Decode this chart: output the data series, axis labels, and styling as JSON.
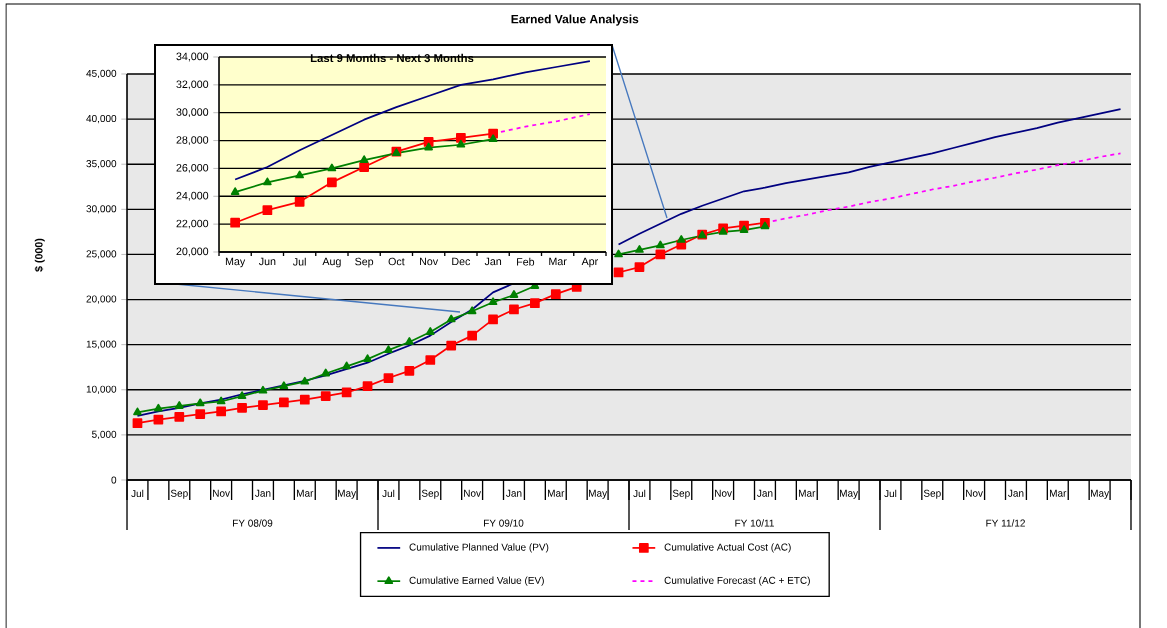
{
  "chart_data": [
    {
      "type": "line",
      "title": "Earned Value Analysis",
      "ylabel": "$ (000)",
      "categories": [
        "Jul",
        null,
        "Sep",
        null,
        "Nov",
        null,
        "Jan",
        null,
        "Mar",
        null,
        "May",
        null,
        "Jul",
        null,
        "Sep",
        null,
        "Nov",
        null,
        "Jan",
        null,
        "Mar",
        null,
        "May",
        null,
        "Jul",
        null,
        "Sep",
        null,
        "Nov",
        null,
        "Jan",
        null,
        "Mar",
        null,
        "May",
        null,
        "Jul",
        null,
        "Sep",
        null,
        "Nov",
        null,
        "Jan",
        null,
        "Mar",
        null,
        "May",
        null
      ],
      "series": [
        {
          "name": "Cumulative Planned Value (PV)",
          "color": "#000080",
          "marker": "none",
          "line_style": "solid",
          "values": [
            7100,
            7600,
            8000,
            8500,
            8900,
            9500,
            10000,
            10500,
            11000,
            11600,
            12300,
            13000,
            14000,
            14900,
            16000,
            17500,
            18900,
            20800,
            21800,
            null,
            null,
            null,
            null,
            26100,
            27300,
            28400,
            29500,
            30400,
            31200,
            32000,
            32400,
            32900,
            33300,
            33700,
            34100,
            34700,
            35200,
            35700,
            36200,
            36800,
            37400,
            38000,
            38500,
            39000,
            39600,
            40100,
            40600,
            41100
          ]
        },
        {
          "name": "Cumulative Actual Cost (AC)",
          "color": "#ff0000",
          "marker": "square",
          "line_style": "solid",
          "values": [
            6300,
            6700,
            7000,
            7300,
            7600,
            8000,
            8300,
            8600,
            8900,
            9300,
            9700,
            10400,
            11300,
            12100,
            13300,
            14900,
            16000,
            17800,
            18900,
            19600,
            20600,
            21400,
            null,
            23000,
            23600,
            25000,
            26100,
            27200,
            27900,
            28200,
            28500,
            null,
            null,
            null,
            null,
            null,
            null,
            null,
            null,
            null,
            null,
            null,
            null,
            null,
            null,
            null,
            null,
            null
          ]
        },
        {
          "name": "Cumulative Earned Value (EV)",
          "color": "#008000",
          "marker": "triangle",
          "line_style": "solid",
          "values": [
            7500,
            7900,
            8200,
            8500,
            8700,
            9300,
            9900,
            10400,
            10900,
            11800,
            12600,
            13400,
            14400,
            15300,
            16400,
            17800,
            18700,
            19700,
            20500,
            21500,
            null,
            null,
            null,
            25000,
            25500,
            26000,
            26600,
            27100,
            27500,
            27700,
            28100,
            null,
            null,
            null,
            null,
            null,
            null,
            null,
            null,
            null,
            null,
            null,
            null,
            null,
            null,
            null,
            null,
            null
          ]
        },
        {
          "name": "Cumulative Forecast (AC + ETC)",
          "color": "#ff00ff",
          "marker": "none",
          "line_style": "dashed",
          "values": [
            null,
            null,
            null,
            null,
            null,
            null,
            null,
            null,
            null,
            null,
            null,
            null,
            null,
            null,
            null,
            null,
            null,
            null,
            null,
            null,
            null,
            null,
            null,
            null,
            null,
            null,
            null,
            null,
            null,
            null,
            28500,
            29000,
            29400,
            29900,
            30300,
            30800,
            31200,
            31700,
            32200,
            32600,
            33100,
            33500,
            34000,
            34400,
            34900,
            35300,
            35800,
            36200
          ]
        }
      ],
      "ylim": [
        0,
        45000
      ],
      "yticks": [
        0,
        {
          "value": 5000,
          "label": "5,000"
        },
        {
          "value": 10000,
          "label": "10,000"
        },
        {
          "value": 15000,
          "label": "15,000"
        },
        {
          "value": 20000,
          "label": "20,000"
        },
        {
          "value": 25000,
          "label": "25,000"
        },
        {
          "value": 30000,
          "label": "30,000"
        },
        {
          "value": 35000,
          "label": "35,000"
        },
        {
          "value": 40000,
          "label": "40,000"
        },
        {
          "value": 45000,
          "label": "45,000"
        }
      ],
      "grid": "y",
      "legend": "bottom",
      "annotations": [
        "FY 08/09",
        "FY 09/10",
        "FY 10/11",
        "FY 11/12"
      ]
    },
    {
      "type": "line",
      "title": "Last 9 Months - Next 3 Months",
      "categories": [
        "May",
        "Jun",
        "Jul",
        "Aug",
        "Sep",
        "Oct",
        "Nov",
        "Dec",
        "Jan",
        "Feb",
        "Mar",
        "Apr"
      ],
      "series": [
        {
          "color": "#000080",
          "marker": "none",
          "line_style": "solid",
          "values": [
            25200,
            26100,
            27300,
            28400,
            29500,
            30400,
            31200,
            32000,
            32400,
            32900,
            33300,
            33700
          ]
        },
        {
          "color": "#ff0000",
          "marker": "square",
          "line_style": "solid",
          "values": [
            22100,
            23000,
            23600,
            25000,
            26100,
            27200,
            27900,
            28200,
            28500,
            null,
            null,
            null
          ]
        },
        {
          "color": "#008000",
          "marker": "triangle",
          "line_style": "solid",
          "values": [
            24300,
            25000,
            25500,
            26000,
            26600,
            27100,
            27500,
            27700,
            28100,
            null,
            null,
            null
          ]
        },
        {
          "color": "#ff00ff",
          "marker": "none",
          "line_style": "dashed",
          "values": [
            null,
            null,
            null,
            null,
            null,
            null,
            null,
            null,
            28500,
            29000,
            29400,
            29900
          ]
        }
      ],
      "ylim": [
        20000,
        34000
      ],
      "yticks": [
        {
          "value": 20000,
          "label": "20,000"
        },
        {
          "value": 22000,
          "label": "22,000"
        },
        {
          "value": 24000,
          "label": "24,000"
        },
        {
          "value": 26000,
          "label": "26,000"
        },
        {
          "value": 28000,
          "label": "28,000"
        },
        {
          "value": 30000,
          "label": "30,000"
        },
        {
          "value": 32000,
          "label": "32,000"
        },
        {
          "value": 34000,
          "label": "34,000"
        }
      ],
      "grid": "y"
    }
  ]
}
